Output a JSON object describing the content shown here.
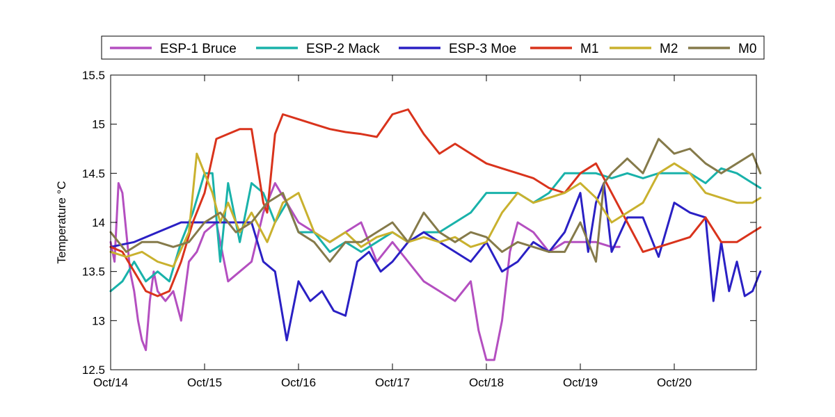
{
  "chart_data": {
    "type": "line",
    "ylabel": "Temperature °C",
    "xlabel": "",
    "xlim": [
      "Oct/14",
      "Oct/20 +22h"
    ],
    "ylim": [
      12.5,
      15.5
    ],
    "yticks": [
      "12.5",
      "13",
      "13.5",
      "14",
      "14.5",
      "15",
      "15.5"
    ],
    "xticks": [
      "Oct/14",
      "Oct/15",
      "Oct/16",
      "Oct/17",
      "Oct/18",
      "Oct/19",
      "Oct/20"
    ],
    "grid": false,
    "legend_position": "top",
    "series": [
      {
        "name": "ESP-1 Bruce",
        "color": "#b44fc0",
        "x": [
          "Oct/14 00:00",
          "Oct/14 01:00",
          "Oct/14 02:00",
          "Oct/14 03:00",
          "Oct/14 04:00",
          "Oct/14 05:00",
          "Oct/14 06:00",
          "Oct/14 07:00",
          "Oct/14 08:00",
          "Oct/14 09:00",
          "Oct/14 10:00",
          "Oct/14 11:00",
          "Oct/14 12:00",
          "Oct/14 14:00",
          "Oct/14 16:00",
          "Oct/14 18:00",
          "Oct/14 20:00",
          "Oct/14 22:00",
          "Oct/15 00:00",
          "Oct/15 03:00",
          "Oct/15 06:00",
          "Oct/15 09:00",
          "Oct/15 12:00",
          "Oct/15 15:00",
          "Oct/15 18:00",
          "Oct/15 21:00",
          "Oct/16 00:00",
          "Oct/16 04:00",
          "Oct/16 08:00",
          "Oct/16 12:00",
          "Oct/16 16:00",
          "Oct/16 20:00",
          "Oct/17 00:00",
          "Oct/17 04:00",
          "Oct/17 08:00",
          "Oct/17 12:00",
          "Oct/17 16:00",
          "Oct/17 20:00",
          "Oct/17 22:00",
          "Oct/18 00:00",
          "Oct/18 02:00",
          "Oct/18 04:00",
          "Oct/18 06:00",
          "Oct/18 08:00",
          "Oct/18 12:00",
          "Oct/18 16:00",
          "Oct/18 20:00",
          "Oct/19 00:00",
          "Oct/19 04:00",
          "Oct/19 08:00",
          "Oct/19 10:00"
        ],
        "y": [
          13.8,
          13.6,
          14.4,
          14.3,
          13.9,
          13.5,
          13.3,
          13.0,
          12.8,
          12.7,
          13.2,
          13.5,
          13.3,
          13.2,
          13.3,
          13.0,
          13.6,
          13.7,
          13.9,
          14.0,
          13.4,
          13.5,
          13.6,
          14.1,
          14.4,
          14.2,
          14.0,
          13.9,
          13.8,
          13.9,
          14.0,
          13.6,
          13.8,
          13.6,
          13.4,
          13.3,
          13.2,
          13.4,
          12.9,
          12.6,
          12.6,
          13.0,
          13.7,
          14.0,
          13.9,
          13.7,
          13.8,
          13.8,
          13.8,
          13.75,
          13.75
        ]
      },
      {
        "name": "ESP-2 Mack",
        "color": "#19b2aa",
        "x": [
          "Oct/14 00:00",
          "Oct/14 03:00",
          "Oct/14 06:00",
          "Oct/14 09:00",
          "Oct/14 12:00",
          "Oct/14 15:00",
          "Oct/14 18:00",
          "Oct/14 21:00",
          "Oct/15 00:00",
          "Oct/15 02:00",
          "Oct/15 04:00",
          "Oct/15 06:00",
          "Oct/15 09:00",
          "Oct/15 12:00",
          "Oct/15 15:00",
          "Oct/15 18:00",
          "Oct/15 21:00",
          "Oct/16 00:00",
          "Oct/16 04:00",
          "Oct/16 08:00",
          "Oct/16 12:00",
          "Oct/16 16:00",
          "Oct/16 20:00",
          "Oct/17 00:00",
          "Oct/17 04:00",
          "Oct/17 08:00",
          "Oct/17 12:00",
          "Oct/17 16:00",
          "Oct/17 20:00",
          "Oct/18 00:00",
          "Oct/18 04:00",
          "Oct/18 08:00",
          "Oct/18 12:00",
          "Oct/18 16:00",
          "Oct/18 20:00",
          "Oct/19 00:00",
          "Oct/19 04:00",
          "Oct/19 08:00",
          "Oct/19 12:00",
          "Oct/19 16:00",
          "Oct/19 20:00",
          "Oct/20 00:00",
          "Oct/20 04:00",
          "Oct/20 08:00",
          "Oct/20 12:00",
          "Oct/20 16:00",
          "Oct/20 20:00",
          "Oct/20 22:00"
        ],
        "y": [
          13.3,
          13.4,
          13.6,
          13.4,
          13.5,
          13.4,
          13.8,
          14.1,
          14.5,
          14.5,
          13.6,
          14.4,
          13.8,
          14.4,
          14.3,
          14.0,
          14.2,
          13.9,
          13.9,
          13.7,
          13.8,
          13.7,
          13.8,
          13.9,
          13.8,
          13.9,
          13.9,
          14.0,
          14.1,
          14.3,
          14.3,
          14.3,
          14.2,
          14.3,
          14.5,
          14.5,
          14.5,
          14.45,
          14.5,
          14.45,
          14.5,
          14.5,
          14.5,
          14.4,
          14.55,
          14.5,
          14.4,
          14.35
        ]
      },
      {
        "name": "ESP-3 Moe",
        "color": "#2a20c4",
        "x": [
          "Oct/14 00:00",
          "Oct/14 06:00",
          "Oct/14 12:00",
          "Oct/14 18:00",
          "Oct/15 00:00",
          "Oct/15 06:00",
          "Oct/15 12:00",
          "Oct/15 15:00",
          "Oct/15 18:00",
          "Oct/15 21:00",
          "Oct/16 00:00",
          "Oct/16 03:00",
          "Oct/16 06:00",
          "Oct/16 09:00",
          "Oct/16 12:00",
          "Oct/16 15:00",
          "Oct/16 18:00",
          "Oct/16 21:00",
          "Oct/17 00:00",
          "Oct/17 04:00",
          "Oct/17 08:00",
          "Oct/17 12:00",
          "Oct/17 16:00",
          "Oct/17 20:00",
          "Oct/18 00:00",
          "Oct/18 04:00",
          "Oct/18 08:00",
          "Oct/18 12:00",
          "Oct/18 16:00",
          "Oct/18 20:00",
          "Oct/19 00:00",
          "Oct/19 02:00",
          "Oct/19 04:00",
          "Oct/19 06:00",
          "Oct/19 08:00",
          "Oct/19 12:00",
          "Oct/19 16:00",
          "Oct/19 20:00",
          "Oct/20 00:00",
          "Oct/20 04:00",
          "Oct/20 08:00",
          "Oct/20 10:00",
          "Oct/20 12:00",
          "Oct/20 14:00",
          "Oct/20 16:00",
          "Oct/20 18:00",
          "Oct/20 20:00",
          "Oct/20 22:00"
        ],
        "y": [
          13.75,
          13.8,
          13.9,
          14.0,
          14.0,
          14.0,
          14.0,
          13.6,
          13.5,
          12.8,
          13.4,
          13.2,
          13.3,
          13.1,
          13.05,
          13.6,
          13.7,
          13.5,
          13.6,
          13.8,
          13.9,
          13.8,
          13.7,
          13.6,
          13.8,
          13.5,
          13.6,
          13.8,
          13.7,
          13.9,
          14.3,
          13.7,
          14.2,
          14.4,
          13.7,
          14.05,
          14.05,
          13.65,
          14.2,
          14.1,
          14.05,
          13.2,
          13.8,
          13.3,
          13.6,
          13.25,
          13.3,
          13.5
        ]
      },
      {
        "name": "M1",
        "color": "#d9331c",
        "x": [
          "Oct/14 00:00",
          "Oct/14 03:00",
          "Oct/14 06:00",
          "Oct/14 09:00",
          "Oct/14 12:00",
          "Oct/14 15:00",
          "Oct/14 18:00",
          "Oct/14 21:00",
          "Oct/15 00:00",
          "Oct/15 03:00",
          "Oct/15 06:00",
          "Oct/15 09:00",
          "Oct/15 12:00",
          "Oct/15 15:00",
          "Oct/15 16:00",
          "Oct/15 18:00",
          "Oct/15 20:00",
          "Oct/16 00:00",
          "Oct/16 04:00",
          "Oct/16 08:00",
          "Oct/16 12:00",
          "Oct/16 16:00",
          "Oct/16 20:00",
          "Oct/17 00:00",
          "Oct/17 04:00",
          "Oct/17 08:00",
          "Oct/17 12:00",
          "Oct/17 16:00",
          "Oct/17 20:00",
          "Oct/18 00:00",
          "Oct/18 04:00",
          "Oct/18 08:00",
          "Oct/18 12:00",
          "Oct/18 16:00",
          "Oct/18 20:00",
          "Oct/19 00:00",
          "Oct/19 04:00",
          "Oct/19 08:00",
          "Oct/19 12:00",
          "Oct/19 16:00",
          "Oct/19 20:00",
          "Oct/20 00:00",
          "Oct/20 04:00",
          "Oct/20 08:00",
          "Oct/20 12:00",
          "Oct/20 16:00",
          "Oct/20 20:00",
          "Oct/20 22:00"
        ],
        "y": [
          13.75,
          13.7,
          13.5,
          13.3,
          13.25,
          13.3,
          13.6,
          14.0,
          14.3,
          14.85,
          14.9,
          14.95,
          14.95,
          14.2,
          14.1,
          14.9,
          15.1,
          15.05,
          15.0,
          14.95,
          14.92,
          14.9,
          14.87,
          15.1,
          15.15,
          14.9,
          14.7,
          14.8,
          14.7,
          14.6,
          14.55,
          14.5,
          14.45,
          14.35,
          14.3,
          14.5,
          14.6,
          14.3,
          14.0,
          13.7,
          13.75,
          13.8,
          13.85,
          14.05,
          13.8,
          13.8,
          13.9,
          13.95
        ]
      },
      {
        "name": "M2",
        "color": "#c9b12e",
        "x": [
          "Oct/14 00:00",
          "Oct/14 04:00",
          "Oct/14 08:00",
          "Oct/14 12:00",
          "Oct/14 16:00",
          "Oct/14 20:00",
          "Oct/14 22:00",
          "Oct/15 00:00",
          "Oct/15 02:00",
          "Oct/15 04:00",
          "Oct/15 06:00",
          "Oct/15 09:00",
          "Oct/15 12:00",
          "Oct/15 16:00",
          "Oct/15 20:00",
          "Oct/16 00:00",
          "Oct/16 04:00",
          "Oct/16 08:00",
          "Oct/16 12:00",
          "Oct/16 16:00",
          "Oct/16 20:00",
          "Oct/17 00:00",
          "Oct/17 04:00",
          "Oct/17 08:00",
          "Oct/17 12:00",
          "Oct/17 16:00",
          "Oct/17 20:00",
          "Oct/18 00:00",
          "Oct/18 04:00",
          "Oct/18 08:00",
          "Oct/18 12:00",
          "Oct/18 16:00",
          "Oct/18 20:00",
          "Oct/19 00:00",
          "Oct/19 04:00",
          "Oct/19 08:00",
          "Oct/19 12:00",
          "Oct/19 16:00",
          "Oct/19 20:00",
          "Oct/20 00:00",
          "Oct/20 04:00",
          "Oct/20 08:00",
          "Oct/20 12:00",
          "Oct/20 16:00",
          "Oct/20 20:00",
          "Oct/20 22:00"
        ],
        "y": [
          13.7,
          13.65,
          13.7,
          13.6,
          13.55,
          13.9,
          14.7,
          14.5,
          14.3,
          14.0,
          14.2,
          13.9,
          14.1,
          13.8,
          14.2,
          14.3,
          13.9,
          13.8,
          13.9,
          13.75,
          13.85,
          13.9,
          13.8,
          13.85,
          13.8,
          13.85,
          13.75,
          13.8,
          14.1,
          14.3,
          14.2,
          14.25,
          14.3,
          14.4,
          14.25,
          14.0,
          14.1,
          14.2,
          14.5,
          14.6,
          14.5,
          14.3,
          14.25,
          14.2,
          14.2,
          14.25
        ]
      },
      {
        "name": "M0",
        "color": "#857a4a",
        "x": [
          "Oct/14 00:00",
          "Oct/14 04:00",
          "Oct/14 08:00",
          "Oct/14 12:00",
          "Oct/14 16:00",
          "Oct/14 20:00",
          "Oct/15 00:00",
          "Oct/15 04:00",
          "Oct/15 08:00",
          "Oct/15 12:00",
          "Oct/15 16:00",
          "Oct/15 20:00",
          "Oct/16 00:00",
          "Oct/16 04:00",
          "Oct/16 08:00",
          "Oct/16 12:00",
          "Oct/16 16:00",
          "Oct/16 20:00",
          "Oct/17 00:00",
          "Oct/17 04:00",
          "Oct/17 08:00",
          "Oct/17 12:00",
          "Oct/17 16:00",
          "Oct/17 20:00",
          "Oct/18 00:00",
          "Oct/18 04:00",
          "Oct/18 08:00",
          "Oct/18 12:00",
          "Oct/18 16:00",
          "Oct/18 20:00",
          "Oct/19 00:00",
          "Oct/19 04:00",
          "Oct/19 06:00",
          "Oct/19 08:00",
          "Oct/19 12:00",
          "Oct/19 16:00",
          "Oct/19 20:00",
          "Oct/20 00:00",
          "Oct/20 04:00",
          "Oct/20 08:00",
          "Oct/20 12:00",
          "Oct/20 16:00",
          "Oct/20 20:00",
          "Oct/20 22:00"
        ],
        "y": [
          13.9,
          13.7,
          13.8,
          13.8,
          13.75,
          13.8,
          14.0,
          14.1,
          13.9,
          14.0,
          14.2,
          14.3,
          13.9,
          13.8,
          13.6,
          13.8,
          13.8,
          13.9,
          14.0,
          13.8,
          14.1,
          13.9,
          13.8,
          13.9,
          13.85,
          13.7,
          13.8,
          13.75,
          13.7,
          13.7,
          14.0,
          13.6,
          14.4,
          14.5,
          14.65,
          14.5,
          14.85,
          14.7,
          14.75,
          14.6,
          14.5,
          14.6,
          14.7,
          14.5
        ]
      }
    ]
  }
}
